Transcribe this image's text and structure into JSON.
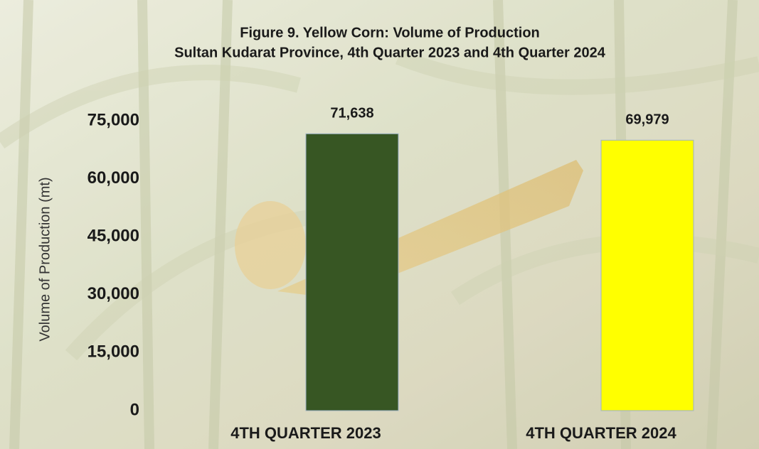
{
  "chart_data": {
    "type": "bar",
    "title": "Figure 9. Yellow Corn: Volume of Production",
    "subtitle": "Sultan Kudarat Province, 4th Quarter 2023 and 4th Quarter 2024",
    "y_label": "Volume of Production (mt)",
    "categories": [
      "4TH QUARTER 2023",
      "4TH QUARTER 2024"
    ],
    "values": [
      71638,
      69979
    ],
    "value_labels": [
      "71,638",
      "69,979"
    ],
    "colors": [
      "#375623",
      "#ffff00"
    ],
    "ylim": [
      0,
      75000
    ],
    "yticks": [
      0,
      {
        "value": 15000,
        "label": "15,000"
      },
      {
        "value": 30000,
        "label": "30,000"
      },
      {
        "value": 45000,
        "label": "45,000"
      },
      {
        "value": 60000,
        "label": "60,000"
      },
      {
        "value": 75000,
        "label": "75,000"
      }
    ],
    "grid": false
  }
}
